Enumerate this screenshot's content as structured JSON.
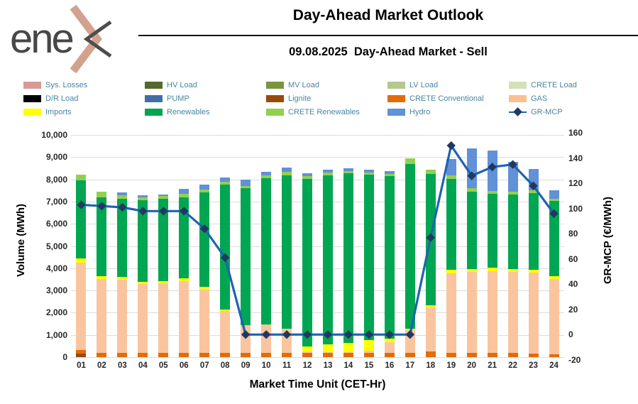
{
  "header": {
    "logo_text": "ene",
    "logo_chevron_color": "#d2a28e",
    "logo_gray_color": "#4d4d4d",
    "title": "Day-Ahead Market Outlook",
    "subtitle": "09.08.2025  Day-Ahead Market - Sell"
  },
  "legend": {
    "text_color": "#4786a0",
    "items": [
      {
        "label": "Sys. Losses",
        "color": "#d89a98",
        "type": "swatch"
      },
      {
        "label": "HV Load",
        "color": "#55682d",
        "type": "swatch"
      },
      {
        "label": "MV Load",
        "color": "#7b9440",
        "type": "swatch"
      },
      {
        "label": "LV Load",
        "color": "#b5c890",
        "type": "swatch"
      },
      {
        "label": "CRETE Load",
        "color": "#d3e0ba",
        "type": "swatch"
      },
      {
        "label": "D/R Load",
        "color": "#000000",
        "type": "swatch"
      },
      {
        "label": "PUMP",
        "color": "#416fa5",
        "type": "swatch"
      },
      {
        "label": "Lignite",
        "color": "#964b0d",
        "type": "swatch"
      },
      {
        "label": "CRETE Conventional",
        "color": "#e36c0a",
        "type": "swatch"
      },
      {
        "label": "GAS",
        "color": "#fac090",
        "type": "swatch"
      },
      {
        "label": "Imports",
        "color": "#ffff00",
        "type": "swatch"
      },
      {
        "label": "Renewables",
        "color": "#00a651",
        "type": "swatch"
      },
      {
        "label": "CRETE Renewables",
        "color": "#92d050",
        "type": "swatch"
      },
      {
        "label": "Hydro",
        "color": "#6191d6",
        "type": "swatch"
      },
      {
        "label": "GR-MCP",
        "color": "#1f63b0",
        "marker_color": "#203864",
        "type": "line"
      }
    ]
  },
  "chart_data": {
    "type": "bar",
    "subtype": "stacked-bars-with-line-overlay",
    "title": "09.08.2025 Day-Ahead Market - Sell",
    "xlabel": "Market Time Unit (CET-Hr)",
    "grid": "horizontal",
    "legend_position": "top",
    "categories": [
      "01",
      "02",
      "03",
      "04",
      "05",
      "06",
      "07",
      "08",
      "09",
      "10",
      "11",
      "12",
      "13",
      "14",
      "15",
      "16",
      "17",
      "18",
      "19",
      "20",
      "21",
      "22",
      "23",
      "24"
    ],
    "series": [
      {
        "name": "Lignite",
        "color": "#964b0d",
        "values": [
          150,
          0,
          0,
          0,
          0,
          0,
          0,
          0,
          0,
          0,
          0,
          0,
          0,
          0,
          0,
          0,
          0,
          0,
          0,
          0,
          0,
          0,
          0,
          0
        ]
      },
      {
        "name": "CRETE Conventional",
        "color": "#e36c0a",
        "values": [
          160,
          180,
          180,
          180,
          180,
          180,
          180,
          180,
          180,
          180,
          180,
          180,
          180,
          180,
          180,
          180,
          200,
          255,
          200,
          200,
          200,
          180,
          160,
          130
        ]
      },
      {
        "name": "GAS",
        "color": "#fac59e",
        "values": [
          3930,
          3330,
          3300,
          3110,
          3130,
          3240,
          2870,
          1890,
          1250,
          1280,
          1090,
          80,
          45,
          45,
          110,
          500,
          1015,
          1970,
          3570,
          3620,
          3675,
          3660,
          3640,
          3380
        ]
      },
      {
        "name": "Imports",
        "color": "#ffff00",
        "values": [
          190,
          125,
          130,
          105,
          110,
          125,
          105,
          70,
          0,
          0,
          0,
          210,
          350,
          425,
          465,
          160,
          75,
          105,
          160,
          130,
          140,
          110,
          130,
          130
        ]
      },
      {
        "name": "Renewables",
        "color": "#00a651",
        "values": [
          3520,
          3565,
          3500,
          3655,
          3690,
          3660,
          4250,
          5640,
          6180,
          6600,
          6920,
          7560,
          7605,
          7630,
          7445,
          7310,
          7410,
          5910,
          4100,
          3500,
          3325,
          3360,
          3440,
          3380
        ]
      },
      {
        "name": "CRETE Renewables",
        "color": "#92d050",
        "values": [
          270,
          235,
          180,
          150,
          130,
          155,
          150,
          110,
          90,
          130,
          160,
          130,
          120,
          105,
          100,
          105,
          240,
          190,
          160,
          160,
          150,
          150,
          150,
          105
        ]
      },
      {
        "name": "Hydro",
        "color": "#6191d6",
        "values": [
          0,
          0,
          110,
          80,
          90,
          200,
          220,
          180,
          300,
          160,
          180,
          115,
          125,
          105,
          125,
          125,
          0,
          0,
          710,
          1790,
          1810,
          1340,
          960,
          375
        ]
      }
    ],
    "line_series": {
      "name": "GR-MCP",
      "color": "#1f63b0",
      "marker": "diamond",
      "marker_color": "#203864",
      "values": [
        103,
        102,
        101,
        98,
        98,
        98,
        84,
        61,
        0,
        0,
        0,
        0,
        0,
        0,
        0,
        0,
        0,
        77,
        150,
        126,
        133,
        135,
        118,
        96
      ]
    },
    "y_left": {
      "label": "Volume (MWh)",
      "min": 0,
      "max": 10000,
      "tick_step": 1000,
      "tick_labels_top_to_bottom": [
        "10,000",
        "9,000",
        "8,000",
        "7,000",
        "6,000",
        "5,000",
        "4,000",
        "3,000",
        "2,000",
        "1,000",
        "0"
      ]
    },
    "y_right": {
      "label": "GR-MCP (€/MWh)",
      "min": -20,
      "max": 160,
      "tick_step": 20,
      "tick_labels_top_to_bottom": [
        "160",
        "140",
        "120",
        "100",
        "80",
        "60",
        "40",
        "20",
        "0",
        "-20"
      ]
    }
  }
}
